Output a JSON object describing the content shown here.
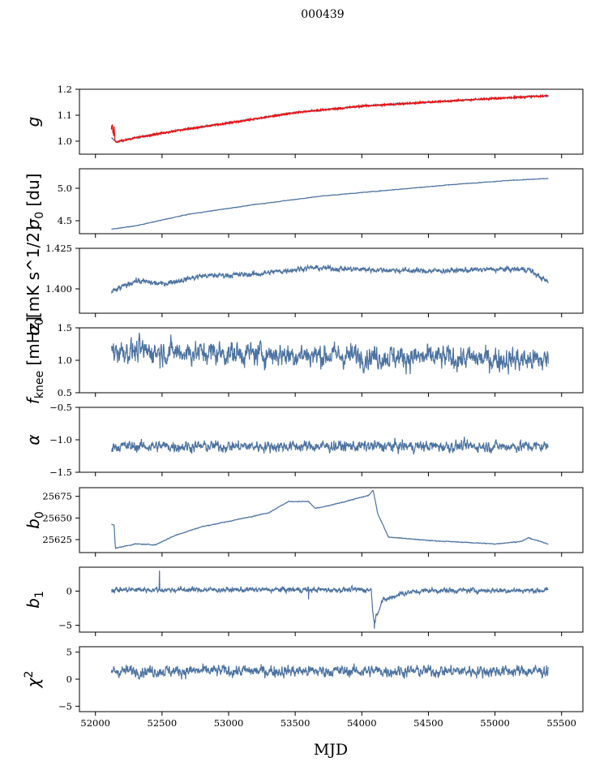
{
  "figure": {
    "title": "000439",
    "xlabel": "MJD"
  },
  "colors": {
    "series": "#4c72a0",
    "fit": "#ee1111",
    "axes": "#000000"
  },
  "chart_data": [
    {
      "type": "line",
      "ylabel": "g",
      "ylabel_sub": "",
      "ylabel_sup": "",
      "ylabel_tail": "",
      "ylim": [
        0.95,
        1.2
      ],
      "yticks": [
        1.0,
        1.1,
        1.2
      ],
      "ytick_labels": [
        "1.0",
        "1.1",
        "1.2"
      ],
      "xlim": [
        51880,
        55660
      ],
      "x_start": 52120,
      "x_end": 55400,
      "trend": [
        [
          52120,
          1.012
        ],
        [
          52160,
          0.997
        ],
        [
          52300,
          1.013
        ],
        [
          52600,
          1.04
        ],
        [
          53000,
          1.07
        ],
        [
          53500,
          1.11
        ],
        [
          54000,
          1.135
        ],
        [
          54500,
          1.15
        ],
        [
          55000,
          1.165
        ],
        [
          55400,
          1.175
        ]
      ],
      "noise": 0.003,
      "spikes": [],
      "overlay": "fit",
      "overlay_spike": [
        52120,
        1.065
      ]
    },
    {
      "type": "line",
      "ylabel": "σ",
      "ylabel_sub": "0",
      "ylabel_sup": "",
      "ylabel_tail": " [du]",
      "ylim": [
        4.3,
        5.3
      ],
      "yticks": [
        4.5,
        5.0
      ],
      "ytick_labels": [
        "4.5",
        "5.0"
      ],
      "xlim": [
        51880,
        55660
      ],
      "x_start": 52120,
      "x_end": 55400,
      "trend": [
        [
          52120,
          4.37
        ],
        [
          52300,
          4.42
        ],
        [
          52700,
          4.6
        ],
        [
          53200,
          4.75
        ],
        [
          53700,
          4.88
        ],
        [
          54200,
          4.97
        ],
        [
          54700,
          5.06
        ],
        [
          55100,
          5.12
        ],
        [
          55400,
          5.15
        ]
      ],
      "noise": 0.004,
      "spikes": []
    },
    {
      "type": "line",
      "ylabel": "σ",
      "ylabel_sub": "0",
      "ylabel_sup": "",
      "ylabel_tail": "[mK s^1/2]",
      "ylim": [
        1.385,
        1.425
      ],
      "yticks": [
        1.4,
        1.425
      ],
      "ytick_labels": [
        "1.400",
        "1.425"
      ],
      "xlim": [
        51880,
        55660
      ],
      "x_start": 52120,
      "x_end": 55400,
      "trend": [
        [
          52120,
          1.398
        ],
        [
          52300,
          1.405
        ],
        [
          52500,
          1.403
        ],
        [
          52800,
          1.408
        ],
        [
          53200,
          1.409
        ],
        [
          53600,
          1.413
        ],
        [
          54000,
          1.412
        ],
        [
          54500,
          1.411
        ],
        [
          55000,
          1.412
        ],
        [
          55250,
          1.412
        ],
        [
          55400,
          1.404
        ]
      ],
      "noise": 0.0015,
      "spikes": []
    },
    {
      "type": "line",
      "ylabel": "f",
      "ylabel_sub": "knee",
      "ylabel_sup": "",
      "ylabel_tail": " [mHz]",
      "ylim": [
        0.5,
        1.5
      ],
      "yticks": [
        0.5,
        1.0,
        1.5
      ],
      "ytick_labels": [
        "0.5",
        "1.0",
        "1.5"
      ],
      "xlim": [
        51880,
        55660
      ],
      "x_start": 52120,
      "x_end": 55400,
      "trend": [
        [
          52120,
          1.15
        ],
        [
          55400,
          1.0
        ]
      ],
      "noise": 0.17,
      "spikes": []
    },
    {
      "type": "line",
      "ylabel": "α",
      "ylabel_sub": "",
      "ylabel_sup": "",
      "ylabel_tail": "",
      "ylim": [
        -1.5,
        -0.5
      ],
      "yticks": [
        -1.5,
        -1.0,
        -0.5
      ],
      "ytick_labels": [
        "−1.5",
        "−1.0",
        "−0.5"
      ],
      "xlim": [
        51880,
        55660
      ],
      "x_start": 52120,
      "x_end": 55400,
      "trend": [
        [
          52120,
          -1.1
        ],
        [
          55400,
          -1.1
        ]
      ],
      "noise": 0.08,
      "spikes": []
    },
    {
      "type": "line",
      "ylabel": "b",
      "ylabel_sub": "0",
      "ylabel_sup": "",
      "ylabel_tail": "",
      "ylim": [
        25610,
        25685
      ],
      "yticks": [
        25625,
        25650,
        25675
      ],
      "ytick_labels": [
        "25625",
        "25650",
        "25675"
      ],
      "xlim": [
        51880,
        55660
      ],
      "x_start": 52120,
      "x_end": 55400,
      "trend": [
        [
          52120,
          25643
        ],
        [
          52140,
          25642
        ],
        [
          52150,
          25615
        ],
        [
          52300,
          25620
        ],
        [
          52450,
          25619
        ],
        [
          52600,
          25630
        ],
        [
          52800,
          25640
        ],
        [
          53000,
          25646
        ],
        [
          53300,
          25656
        ],
        [
          53450,
          25669
        ],
        [
          53600,
          25669
        ],
        [
          53650,
          25661
        ],
        [
          53750,
          25664
        ],
        [
          53850,
          25668
        ],
        [
          54050,
          25676
        ],
        [
          54085,
          25682
        ],
        [
          54120,
          25655
        ],
        [
          54200,
          25628
        ],
        [
          54500,
          25624
        ],
        [
          55000,
          25620
        ],
        [
          55200,
          25623
        ],
        [
          55250,
          25627
        ],
        [
          55400,
          25620
        ]
      ],
      "noise": 0.4,
      "spikes": []
    },
    {
      "type": "line",
      "ylabel": "b",
      "ylabel_sub": "1",
      "ylabel_sup": "",
      "ylabel_tail": "",
      "ylim": [
        -6,
        3.5
      ],
      "yticks": [
        -5,
        0
      ],
      "ytick_labels": [
        "−5",
        "0"
      ],
      "xlim": [
        51880,
        55660
      ],
      "x_start": 52120,
      "x_end": 55400,
      "trend": [
        [
          52120,
          0.2
        ],
        [
          54050,
          0.2
        ],
        [
          54070,
          0.3
        ],
        [
          54090,
          -4.5
        ],
        [
          54150,
          -1.5
        ],
        [
          54300,
          -0.3
        ],
        [
          54500,
          0.1
        ],
        [
          55400,
          0.1
        ]
      ],
      "noise": 0.35,
      "spikes": [
        [
          52480,
          3.0
        ],
        [
          53600,
          -1.2
        ],
        [
          54095,
          -5.5
        ]
      ]
    },
    {
      "type": "line",
      "ylabel": "χ",
      "ylabel_sub": "",
      "ylabel_sup": "2",
      "ylabel_tail": "",
      "ylim": [
        -6,
        6
      ],
      "yticks": [
        -5,
        0,
        5
      ],
      "ytick_labels": [
        "−5",
        "0",
        "5"
      ],
      "xlim": [
        51880,
        55660
      ],
      "x_start": 52120,
      "x_end": 55400,
      "trend": [
        [
          52120,
          1.5
        ],
        [
          55400,
          1.5
        ]
      ],
      "noise": 1.0,
      "spikes": []
    }
  ],
  "xaxis": {
    "ticks": [
      52000,
      52500,
      53000,
      53500,
      54000,
      54500,
      55000,
      55500
    ],
    "tick_labels": [
      "52000",
      "52500",
      "53000",
      "53500",
      "54000",
      "54500",
      "55000",
      "55500"
    ]
  }
}
